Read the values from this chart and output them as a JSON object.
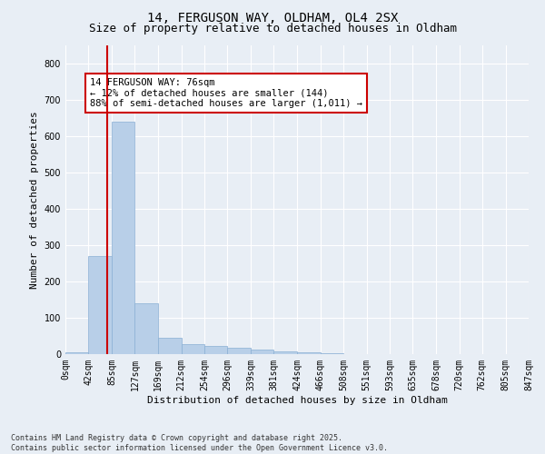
{
  "title1": "14, FERGUSON WAY, OLDHAM, OL4 2SX",
  "title2": "Size of property relative to detached houses in Oldham",
  "xlabel": "Distribution of detached houses by size in Oldham",
  "ylabel": "Number of detached properties",
  "bar_color": "#b8cfe8",
  "bar_edge_color": "#8aafd4",
  "redline_color": "#cc0000",
  "redline_x": 76,
  "annotation_text": "14 FERGUSON WAY: 76sqm\n← 12% of detached houses are smaller (144)\n88% of semi-detached houses are larger (1,011) →",
  "annotation_box_color": "#ffffff",
  "annotation_box_edge": "#cc0000",
  "bins": [
    0,
    42,
    85,
    127,
    169,
    212,
    254,
    296,
    339,
    381,
    424,
    466,
    508,
    551,
    593,
    635,
    678,
    720,
    762,
    805,
    847
  ],
  "counts": [
    5,
    270,
    640,
    140,
    45,
    28,
    22,
    18,
    12,
    7,
    4,
    2,
    0,
    0,
    0,
    0,
    0,
    0,
    0,
    1
  ],
  "ylim": [
    0,
    850
  ],
  "yticks": [
    0,
    100,
    200,
    300,
    400,
    500,
    600,
    700,
    800
  ],
  "background_color": "#e8eef5",
  "grid_color": "#ffffff",
  "footer_text": "Contains HM Land Registry data © Crown copyright and database right 2025.\nContains public sector information licensed under the Open Government Licence v3.0.",
  "title_fontsize": 10,
  "subtitle_fontsize": 9,
  "axis_label_fontsize": 8,
  "tick_fontsize": 7,
  "annotation_fontsize": 7.5
}
